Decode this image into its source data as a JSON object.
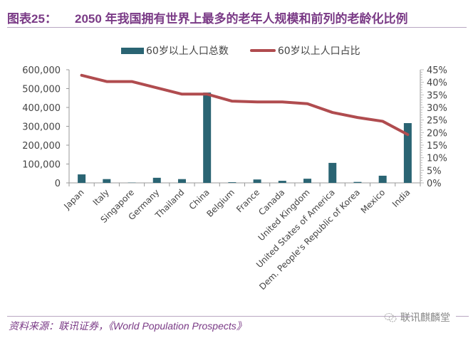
{
  "header": {
    "prefix": "图表25：",
    "title": "2050 年我国拥有世界上最多的老年人规模和前列的老龄化比例"
  },
  "footer": {
    "source": "资料来源：联讯证券，《World Population Prospects》",
    "watermark": "联讯麒麟堂",
    "watermark_icon": "chat-bubble-icon"
  },
  "colors": {
    "bar": "#2a6473",
    "line": "#b04c4f",
    "axis": "#999999",
    "title": "#7a3a86"
  },
  "chart_data": {
    "type": "bar+line",
    "title": "",
    "categories": [
      "Japan",
      "Italy",
      "Singapore",
      "Germany",
      "Thailand",
      "China",
      "Belgium",
      "France",
      "Canada",
      "United Kingdom",
      "United States of America",
      "Dem. People's Republic of Korea",
      "Mexico",
      "India"
    ],
    "series": [
      {
        "name": "60岁以上人口总数",
        "type": "bar",
        "axis": "left",
        "values": [
          45000,
          20000,
          1500,
          27000,
          20000,
          479000,
          3500,
          18000,
          11000,
          22000,
          106000,
          5000,
          38000,
          317000
        ]
      },
      {
        "name": "60岁以上人口占比",
        "type": "line",
        "axis": "right",
        "values": [
          42.8,
          40.3,
          40.3,
          37.8,
          35.3,
          35.3,
          32.5,
          32.2,
          32.2,
          31.5,
          28.0,
          26.0,
          24.5,
          19.2
        ]
      }
    ],
    "left_axis": {
      "range": [
        0,
        600000
      ],
      "ticks": [
        0,
        100000,
        200000,
        300000,
        400000,
        500000,
        600000
      ],
      "tick_labels": [
        "0",
        "100,000",
        "200,000",
        "300,000",
        "400,000",
        "500,000",
        "600,000"
      ]
    },
    "right_axis": {
      "range": [
        0,
        45
      ],
      "unit": "%",
      "ticks": [
        0,
        5,
        10,
        15,
        20,
        25,
        30,
        35,
        40,
        45
      ],
      "tick_labels": [
        "0%",
        "5%",
        "10%",
        "15%",
        "20%",
        "25%",
        "30%",
        "35%",
        "40%",
        "45%"
      ]
    },
    "xlabel": "",
    "ylabel": "",
    "legend": {
      "position": "top",
      "entries": [
        "60岁以上人口总数",
        "60岁以上人口占比"
      ]
    },
    "grid": false
  }
}
